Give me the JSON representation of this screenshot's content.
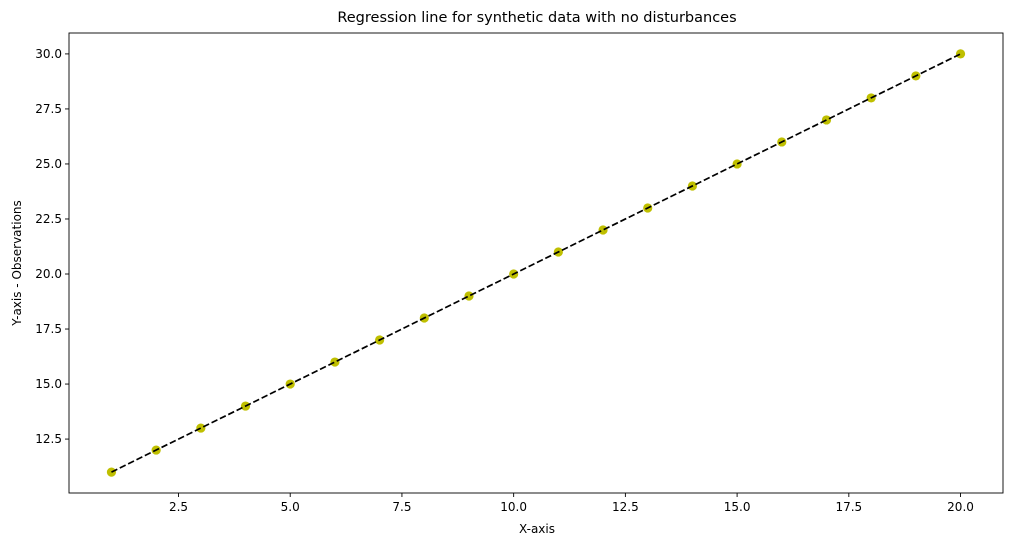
{
  "chart_data": {
    "type": "scatter",
    "title": "Regression line for synthetic data with no disturbances",
    "xlabel": "X-axis",
    "ylabel": "Y-axis - Observations",
    "xlim": [
      0.05,
      20.95
    ],
    "ylim": [
      10.05,
      30.95
    ],
    "xticks": [
      2.5,
      5.0,
      7.5,
      10.0,
      12.5,
      15.0,
      17.5,
      20.0
    ],
    "xtick_labels": [
      "2.5",
      "5.0",
      "7.5",
      "10.0",
      "12.5",
      "15.0",
      "17.5",
      "20.0"
    ],
    "yticks": [
      12.5,
      15.0,
      17.5,
      20.0,
      22.5,
      25.0,
      27.5,
      30.0
    ],
    "ytick_labels": [
      "12.5",
      "15.0",
      "17.5",
      "20.0",
      "22.5",
      "25.0",
      "27.5",
      "30.0"
    ],
    "grid": false,
    "series": [
      {
        "kind": "scatter",
        "color": "#bfbf00",
        "x": [
          1,
          2,
          3,
          4,
          5,
          6,
          7,
          8,
          9,
          10,
          11,
          12,
          13,
          14,
          15,
          16,
          17,
          18,
          19,
          20
        ],
        "y": [
          11,
          12,
          13,
          14,
          15,
          16,
          17,
          18,
          19,
          20,
          21,
          22,
          23,
          24,
          25,
          26,
          27,
          28,
          29,
          30
        ]
      },
      {
        "kind": "line",
        "style": "dashed",
        "color": "#000000",
        "x": [
          1,
          20
        ],
        "y": [
          11,
          30
        ]
      }
    ]
  }
}
